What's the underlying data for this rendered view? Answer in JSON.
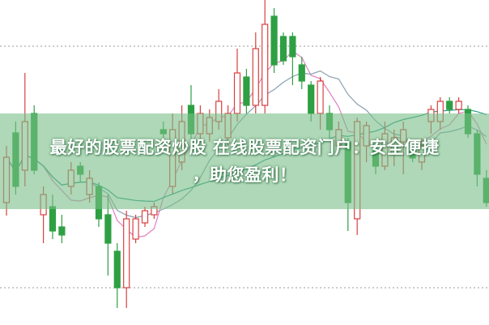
{
  "overlay": {
    "title_line1": "最好的股票配资炒股 在线股票配资门户：安全便捷",
    "title_line2": "，助您盈利！"
  },
  "colors": {
    "up": "#d94040",
    "down": "#2ea043",
    "banner": "#8cc99a",
    "ma5": "#e080c0",
    "ma10": "#8aa0b0",
    "ma30": "#2a9a8a",
    "grid": "#9a9a9a"
  },
  "chart_data": {
    "type": "candlestick",
    "title": "",
    "grid": "dotted horizontal",
    "ylim": [
      0,
      100
    ],
    "fields": [
      "open",
      "close",
      "high",
      "low"
    ],
    "candles": [
      [
        37.5,
        51.5,
        55,
        33.5
      ],
      [
        59,
        42.5,
        62.5,
        40
      ],
      [
        47.5,
        62.5,
        77.5,
        42.5
      ],
      [
        65,
        47.5,
        67.5,
        46.25
      ],
      [
        33.75,
        40,
        42.5,
        25
      ],
      [
        36.25,
        28.75,
        40,
        26.25
      ],
      [
        30,
        27.5,
        33.75,
        25
      ],
      [
        42.5,
        47.5,
        50,
        40
      ],
      [
        48.75,
        46.25,
        50,
        43.75
      ],
      [
        40,
        45,
        47.5,
        37.5
      ],
      [
        42.5,
        32.5,
        43.75,
        30
      ],
      [
        33.75,
        25,
        40,
        15
      ],
      [
        22.5,
        11.25,
        25,
        5
      ],
      [
        11.25,
        32.5,
        35,
        5
      ],
      [
        26.25,
        32.5,
        33.75,
        25
      ],
      [
        31.25,
        35,
        36.25,
        30
      ],
      [
        33.75,
        36.25,
        37.5,
        32.5
      ],
      [
        60,
        58.75,
        62.5,
        57.5
      ],
      [
        42.5,
        60,
        65,
        40
      ],
      [
        50,
        62.5,
        67.5,
        47.5
      ],
      [
        67.5,
        58.75,
        73.75,
        56.25
      ],
      [
        58.75,
        65,
        67.5,
        56.25
      ],
      [
        58.75,
        63.75,
        66.25,
        56.25
      ],
      [
        62.5,
        68.75,
        72.5,
        60
      ],
      [
        57.5,
        65,
        67.5,
        55
      ],
      [
        65,
        77.5,
        85,
        62.5
      ],
      [
        76.25,
        67.5,
        78.75,
        65
      ],
      [
        67.5,
        85,
        90,
        65
      ],
      [
        67.5,
        92.5,
        100,
        65
      ],
      [
        95,
        80,
        97.5,
        77.5
      ],
      [
        88.75,
        81.25,
        90,
        80
      ],
      [
        88.75,
        82.5,
        90,
        73.75
      ],
      [
        80,
        75,
        82.5,
        72.5
      ],
      [
        73.75,
        65,
        75,
        62.5
      ],
      [
        65,
        75,
        76.25,
        60
      ],
      [
        65,
        60,
        67.5,
        57.5
      ],
      [
        55,
        60,
        62.5,
        53.75
      ],
      [
        56.25,
        37.5,
        57.5,
        28.75
      ],
      [
        32.5,
        62.5,
        63.75,
        27.5
      ],
      [
        55,
        61.25,
        62.5,
        50
      ],
      [
        53.75,
        48.75,
        55,
        46.25
      ],
      [
        48.75,
        58.75,
        62.5,
        47.5
      ],
      [
        52.5,
        57.5,
        60,
        48.75
      ],
      [
        56.25,
        60,
        62.5,
        46.25
      ],
      [
        53.75,
        51.25,
        55,
        50
      ],
      [
        50,
        55,
        57.5,
        47.5
      ],
      [
        62.5,
        66.25,
        67.5,
        58.75
      ],
      [
        62.5,
        68.75,
        70,
        60
      ],
      [
        68.75,
        66.25,
        70,
        65
      ],
      [
        66.25,
        68.75,
        70,
        65
      ],
      [
        66.25,
        58.75,
        67.5,
        57.5
      ],
      [
        58.75,
        46.25,
        60,
        42.5
      ],
      [
        45,
        37.5,
        47.5,
        36.25
      ]
    ],
    "moving_averages": [
      "MA5",
      "MA10",
      "MA30"
    ]
  }
}
